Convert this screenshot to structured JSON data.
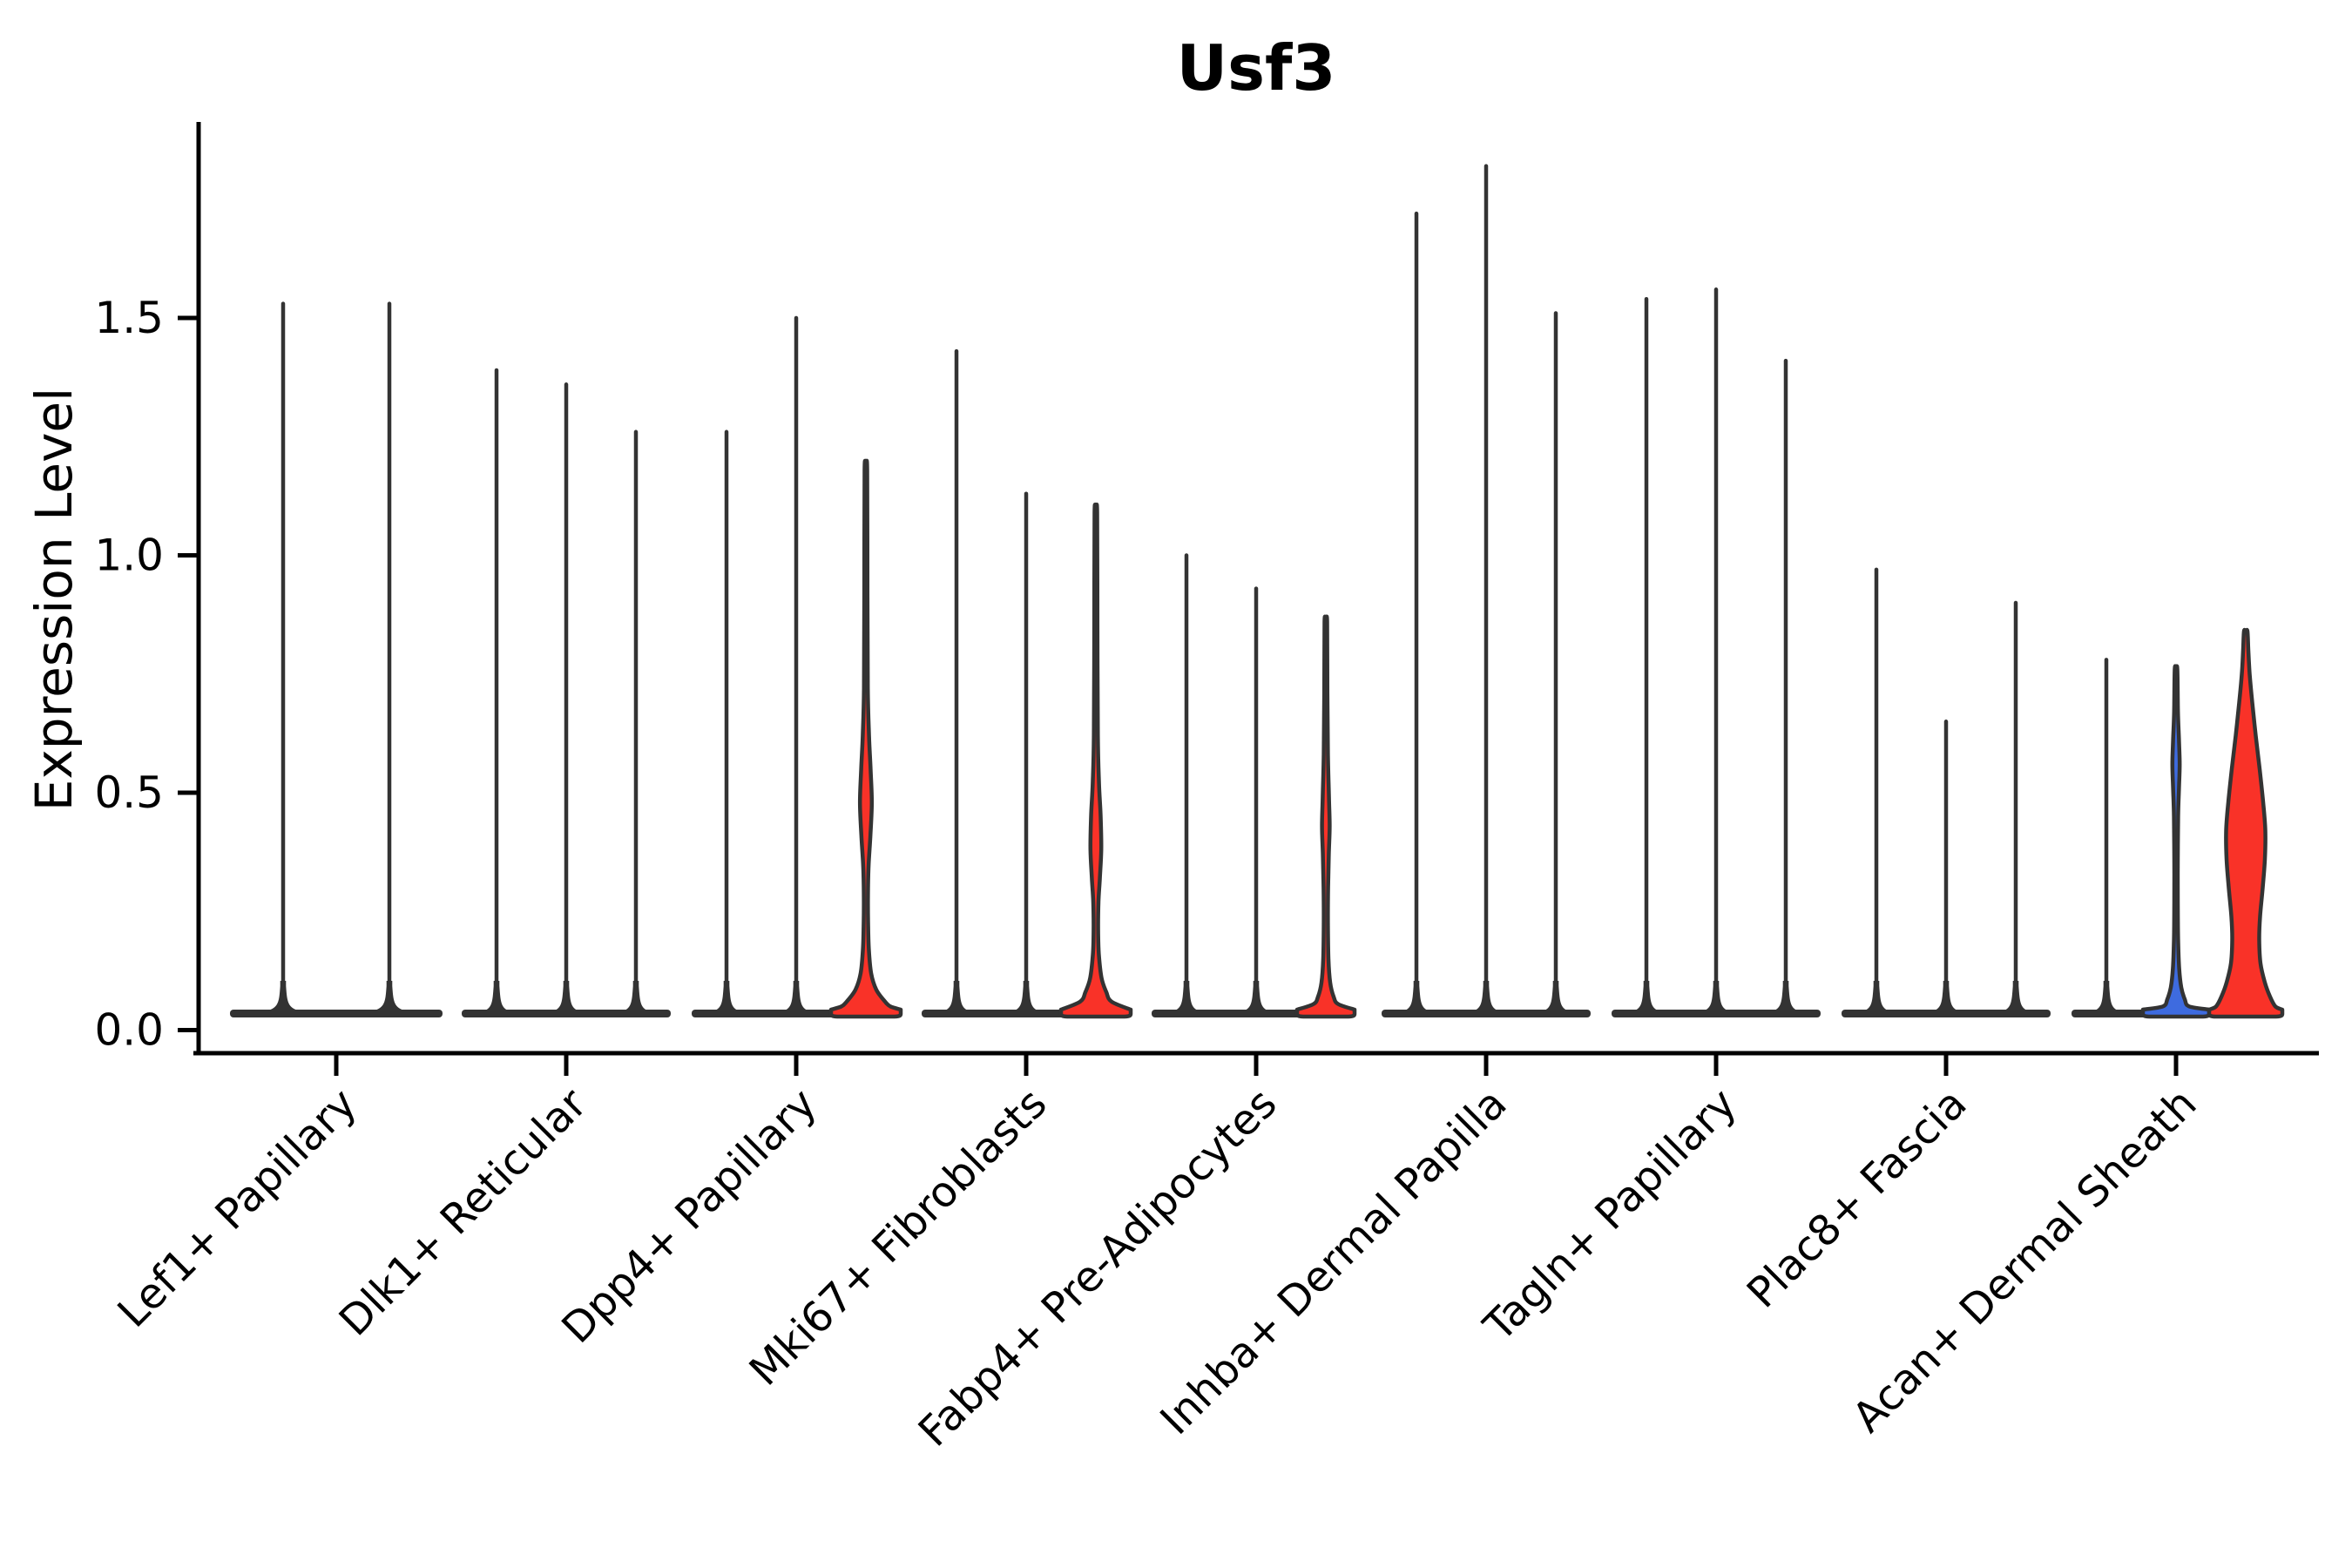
{
  "title": "Usf3",
  "y_axis": {
    "label": "Expression Level",
    "tick_labels": [
      "0.0",
      "0.5",
      "1.0",
      "1.5"
    ],
    "tick_values": [
      0.0,
      0.5,
      1.0,
      1.5
    ]
  },
  "colors": {
    "red": "#F93228",
    "blue": "#3E6BDF",
    "outline": "#333333",
    "axis": "#000000"
  },
  "chart_data": {
    "type": "violin",
    "title": "Usf3",
    "xlabel": "",
    "ylabel": "Expression Level",
    "ylim": [
      -0.05,
      1.91
    ],
    "yticks": [
      0.0,
      0.5,
      1.0,
      1.5
    ],
    "grid": false,
    "legend": "none",
    "description": "Stacked/split violin plot of Usf3 expression per fibroblast cluster; most violins are near-zero flat densities with a thin spike to the max expression value; a few violins show visible filled density (red or blue). profile entries are [expression_value, half_width_px].",
    "categories": [
      "Lef1+ Papillary",
      "Dlk1+ Reticular",
      "Dpp4+ Papillary",
      "Mki67+ Fibroblasts",
      "Fabp4+ Pre-Adipocytes",
      "Inhba+ Dermal Papilla",
      "Tagln+ Papillary",
      "Plac8+ Fascia",
      "Acan+ Dermal Sheath"
    ],
    "groups": [
      {
        "category": "Lef1+ Papillary",
        "violins": [
          {
            "max": 1.53,
            "fill": "none"
          },
          {
            "max": 1.53,
            "fill": "none"
          }
        ]
      },
      {
        "category": "Dlk1+ Reticular",
        "violins": [
          {
            "max": 1.39,
            "fill": "none"
          },
          {
            "max": 1.36,
            "fill": "none"
          },
          {
            "max": 1.26,
            "fill": "none"
          }
        ]
      },
      {
        "category": "Dpp4+ Papillary",
        "violins": [
          {
            "max": 1.26,
            "fill": "none"
          },
          {
            "max": 1.5,
            "fill": "none"
          },
          {
            "max": 1.18,
            "fill": "red",
            "base_halfwidth": 40,
            "profile": [
              [
                1.18,
                1.5
              ],
              [
                0.92,
                1.8
              ],
              [
                0.72,
                2.2
              ],
              [
                0.62,
                3.6
              ],
              [
                0.55,
                5.4
              ],
              [
                0.48,
                6.8
              ],
              [
                0.41,
                5.2
              ],
              [
                0.35,
                3.2
              ],
              [
                0.29,
                2.4
              ],
              [
                0.23,
                2.5
              ],
              [
                0.17,
                3.4
              ],
              [
                0.12,
                6
              ],
              [
                0.085,
                12
              ],
              [
                0.06,
                22
              ],
              [
                0.05,
                28
              ]
            ]
          }
        ]
      },
      {
        "category": "Mki67+ Fibroblasts",
        "violins": [
          {
            "max": 1.43,
            "fill": "none"
          },
          {
            "max": 1.13,
            "fill": "none"
          },
          {
            "max": 1.09,
            "fill": "red",
            "base_halfwidth": 40,
            "profile": [
              [
                1.09,
                1.5
              ],
              [
                0.86,
                1.8
              ],
              [
                0.62,
                2.3
              ],
              [
                0.52,
                3.6
              ],
              [
                0.45,
                5.5
              ],
              [
                0.38,
                6.2
              ],
              [
                0.32,
                4.6
              ],
              [
                0.27,
                3.0
              ],
              [
                0.21,
                2.6
              ],
              [
                0.16,
                3.4
              ],
              [
                0.11,
                6.5
              ],
              [
                0.08,
                12
              ],
              [
                0.06,
                18
              ]
            ]
          }
        ]
      },
      {
        "category": "Fabp4+ Pre-Adipocytes",
        "violins": [
          {
            "max": 1.0,
            "fill": "none"
          },
          {
            "max": 0.93,
            "fill": "none"
          },
          {
            "max": 0.86,
            "fill": "red",
            "base_halfwidth": 33,
            "profile": [
              [
                0.86,
                1.5
              ],
              [
                0.71,
                1.8
              ],
              [
                0.58,
                2.4
              ],
              [
                0.49,
                3.6
              ],
              [
                0.43,
                4.4
              ],
              [
                0.37,
                3.4
              ],
              [
                0.3,
                2.6
              ],
              [
                0.22,
                2.4
              ],
              [
                0.15,
                3.0
              ],
              [
                0.1,
                5
              ],
              [
                0.07,
                9
              ],
              [
                0.055,
                14
              ]
            ]
          }
        ]
      },
      {
        "category": "Inhba+ Dermal Papilla",
        "violins": [
          {
            "max": 1.72,
            "fill": "none"
          },
          {
            "max": 1.82,
            "fill": "none"
          },
          {
            "max": 1.51,
            "fill": "none"
          }
        ]
      },
      {
        "category": "Tagln+ Papillary",
        "violins": [
          {
            "max": 1.54,
            "fill": "none"
          },
          {
            "max": 1.56,
            "fill": "none"
          },
          {
            "max": 1.41,
            "fill": "none"
          }
        ]
      },
      {
        "category": "Plac8+ Fascia",
        "violins": [
          {
            "max": 0.97,
            "fill": "none"
          },
          {
            "max": 0.65,
            "fill": "none"
          },
          {
            "max": 0.9,
            "fill": "none"
          }
        ]
      },
      {
        "category": "Acan+ Dermal Sheath",
        "violins": [
          {
            "max": 0.78,
            "fill": "none"
          },
          {
            "max": 0.76,
            "fill": "blue",
            "base_halfwidth": 38,
            "profile": [
              [
                0.76,
                1.5
              ],
              [
                0.67,
                2.2
              ],
              [
                0.61,
                3.4
              ],
              [
                0.56,
                4.2
              ],
              [
                0.51,
                3.4
              ],
              [
                0.45,
                2.4
              ],
              [
                0.36,
                2.0
              ],
              [
                0.27,
                2.0
              ],
              [
                0.19,
                2.4
              ],
              [
                0.13,
                3.6
              ],
              [
                0.09,
                6
              ],
              [
                0.065,
                10
              ],
              [
                0.05,
                15
              ]
            ]
          },
          {
            "max": 0.84,
            "fill": "red",
            "base_halfwidth": 42,
            "profile": [
              [
                0.84,
                2
              ],
              [
                0.8,
                3
              ],
              [
                0.75,
                4.5
              ],
              [
                0.69,
                7.5
              ],
              [
                0.62,
                11.5
              ],
              [
                0.55,
                16
              ],
              [
                0.48,
                20
              ],
              [
                0.42,
                22.5
              ],
              [
                0.36,
                22
              ],
              [
                0.3,
                19.5
              ],
              [
                0.24,
                16.5
              ],
              [
                0.19,
                15.5
              ],
              [
                0.14,
                17
              ],
              [
                0.1,
                22
              ],
              [
                0.07,
                28
              ],
              [
                0.05,
                34
              ]
            ]
          }
        ]
      }
    ]
  }
}
